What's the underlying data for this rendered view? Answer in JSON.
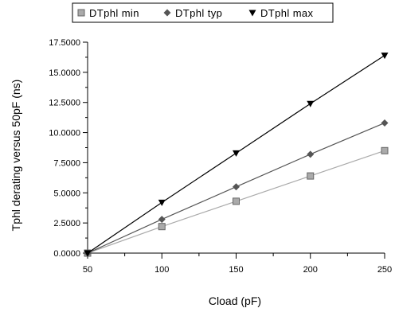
{
  "chart_data": {
    "type": "line",
    "title": "",
    "xlabel": "Cload (pF)",
    "ylabel": "Tphl derating versus 50pF (ns)",
    "x": [
      50,
      100,
      150,
      200,
      250
    ],
    "x_tick_labels": [
      "50",
      "100",
      "150",
      "200",
      "250"
    ],
    "xlim": [
      50,
      250
    ],
    "y_ticks": [
      0,
      2.5,
      5,
      7.5,
      10,
      12.5,
      15,
      17.5
    ],
    "y_tick_labels": [
      "0.0000",
      "2.5000",
      "5.0000",
      "7.5000",
      "10.0000",
      "12.5000",
      "15.0000",
      "17.5000"
    ],
    "ylim": [
      0,
      17.5
    ],
    "grid": false,
    "legend_position": "top",
    "series": [
      {
        "name": "DTphl min",
        "values": [
          0,
          2.2,
          4.3,
          6.4,
          8.5
        ],
        "color": "#aaaaaa",
        "marker": "square"
      },
      {
        "name": "DTphl typ",
        "values": [
          0,
          2.8,
          5.5,
          8.2,
          10.8
        ],
        "color": "#555555",
        "marker": "diamond"
      },
      {
        "name": "DTphl max",
        "values": [
          0,
          4.2,
          8.3,
          12.4,
          16.4
        ],
        "color": "#000000",
        "marker": "triangle-down"
      }
    ]
  }
}
